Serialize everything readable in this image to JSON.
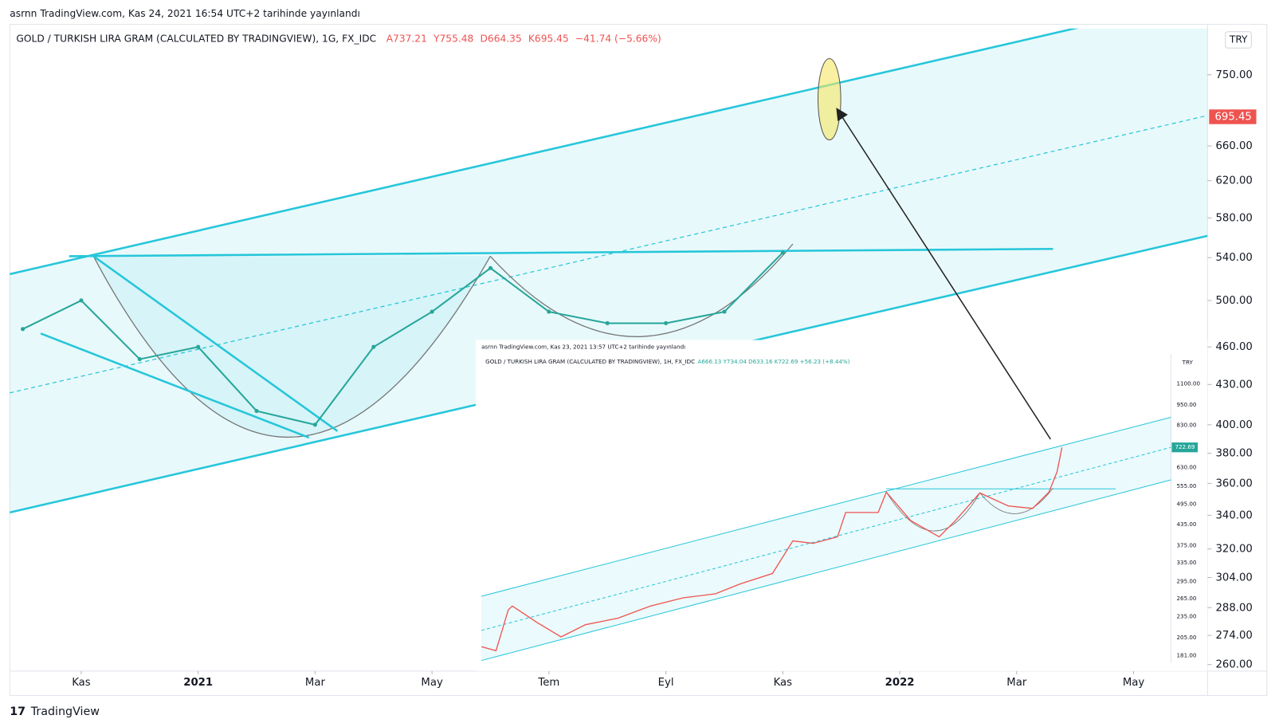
{
  "header": {
    "published": "asrnn TradingView.com, Kas 24, 2021 16:54 UTC+2 tarihinde yayınlandı",
    "symbol": "GOLD / TURKISH LIRA GRAM (CALCULATED BY TRADINGVIEW), 1G, FX_IDC",
    "ohlc": [
      "A737.21",
      "Y755.48",
      "D664.35",
      "K695.45",
      "−41.74 (−5.66%)"
    ]
  },
  "currency": "TRY",
  "footer": "TradingView",
  "chart_data": {
    "type": "line",
    "log_scale": true,
    "color": "#26a69a",
    "x": [
      "2020-10",
      "2020-11",
      "2020-12",
      "2021-01",
      "2021-02",
      "2021-03",
      "2021-04",
      "2021-05",
      "2021-06",
      "2021-07",
      "2021-08",
      "2021-09",
      "2021-10",
      "2021-11"
    ],
    "values": [
      475,
      500,
      450,
      460,
      410,
      400,
      460,
      490,
      530,
      490,
      480,
      480,
      490,
      545
    ],
    "last_price": 695.45,
    "xlim": [
      "2020-10",
      "2022-06"
    ],
    "xticks": [
      {
        "value": "2020-11",
        "label": "Kas"
      },
      {
        "value": "2021-01",
        "label": "2021"
      },
      {
        "value": "2021-03",
        "label": "Mar"
      },
      {
        "value": "2021-05",
        "label": "May"
      },
      {
        "value": "2021-07",
        "label": "Tem"
      },
      {
        "value": "2021-09",
        "label": "Eyl"
      },
      {
        "value": "2021-11",
        "label": "Kas"
      },
      {
        "value": "2022-01",
        "label": "2022"
      },
      {
        "value": "2022-03",
        "label": "Mar"
      },
      {
        "value": "2022-05",
        "label": "May"
      }
    ],
    "ylim": [
      257,
      815
    ],
    "yticks": [
      {
        "value": 260,
        "label": "260.00"
      },
      {
        "value": 274,
        "label": "274.00"
      },
      {
        "value": 288,
        "label": "288.00"
      },
      {
        "value": 304,
        "label": "304.00"
      },
      {
        "value": 320,
        "label": "320.00"
      },
      {
        "value": 340,
        "label": "340.00"
      },
      {
        "value": 360,
        "label": "360.00"
      },
      {
        "value": 380,
        "label": "380.00"
      },
      {
        "value": 400,
        "label": "400.00"
      },
      {
        "value": 430,
        "label": "430.00"
      },
      {
        "value": 460,
        "label": "460.00"
      },
      {
        "value": 500,
        "label": "500.00"
      },
      {
        "value": 540,
        "label": "540.00"
      },
      {
        "value": 580,
        "label": "580.00"
      },
      {
        "value": 620,
        "label": "620.00"
      },
      {
        "value": 660,
        "label": "660.00"
      },
      {
        "value": 750,
        "label": "750.00"
      }
    ]
  },
  "inset": {
    "published": "asrnn TradingView.com, Kas 23, 2021 13:57 UTC+2 tarihinde yayınlandı",
    "symbol": "GOLD / TURKISH LIRA GRAM (CALCULATED BY TRADINGVIEW), 1H, FX_IDC",
    "ohlc": "A666.13 Y734.04 D633.16 K722.69 +56.23 (+8.44%)",
    "currency": "TRY",
    "last_price": "722.69",
    "yticks": [
      "1100.00",
      "950.00",
      "830.00",
      "630.00",
      "555.00",
      "495.00",
      "435.00",
      "375.00",
      "335.00",
      "295.00",
      "265.00",
      "235.00",
      "205.00",
      "181.00"
    ]
  }
}
